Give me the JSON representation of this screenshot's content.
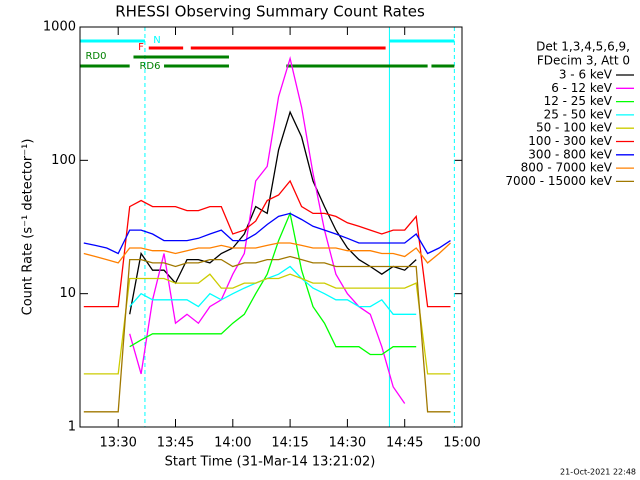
{
  "chart_data": {
    "type": "line",
    "title": "RHESSI Observing Summary Count Rates",
    "xlabel": "Start Time (31-Mar-14 13:21:02)",
    "ylabel": "Count Rate (s⁻¹ detector⁻¹)",
    "footer": "21-Oct-2021 22:48",
    "legend_header": [
      "Det 1,3,4,5,6,9,",
      "FDecim 3, Att 0"
    ],
    "log_y": true,
    "xlim": [
      800,
      900
    ],
    "ylim": [
      1,
      1000
    ],
    "yticks": [
      1,
      10,
      100,
      1000
    ],
    "xticks": [
      {
        "value": 810,
        "label": "13:30"
      },
      {
        "value": 825,
        "label": "13:45"
      },
      {
        "value": 840,
        "label": "14:00"
      },
      {
        "value": 855,
        "label": "14:15"
      },
      {
        "value": 870,
        "label": "14:30"
      },
      {
        "value": 885,
        "label": "14:45"
      },
      {
        "value": 900,
        "label": "15:00"
      }
    ],
    "x": [
      801,
      804,
      807,
      810,
      813,
      816,
      819,
      822,
      825,
      828,
      831,
      834,
      837,
      840,
      843,
      846,
      849,
      852,
      855,
      858,
      861,
      864,
      867,
      870,
      873,
      876,
      879,
      882,
      885,
      888,
      891,
      894,
      897
    ],
    "series": [
      {
        "name": "3 - 6 keV",
        "color": "#000000",
        "values": [
          null,
          null,
          null,
          null,
          7,
          20,
          15,
          15,
          12,
          18,
          18,
          17,
          20,
          22,
          28,
          45,
          40,
          120,
          230,
          150,
          70,
          45,
          30,
          22,
          18,
          16,
          14,
          16,
          15,
          18,
          null,
          null,
          null
        ]
      },
      {
        "name": "6 - 12 keV",
        "color": "#ff00ff",
        "values": [
          null,
          null,
          null,
          null,
          5,
          2.5,
          9,
          20,
          6,
          7,
          6,
          8,
          9,
          14,
          20,
          70,
          90,
          300,
          580,
          250,
          80,
          30,
          14,
          10,
          8,
          7,
          4,
          2,
          1.5,
          null,
          null,
          null,
          null
        ]
      },
      {
        "name": "12 - 25 keV",
        "color": "#00ff00",
        "values": [
          null,
          null,
          null,
          null,
          4,
          4.5,
          5,
          5,
          5,
          5,
          5,
          5,
          5,
          6,
          7,
          10,
          14,
          25,
          40,
          15,
          8,
          6,
          4,
          4,
          4,
          3.5,
          3.5,
          4,
          4,
          4,
          null,
          null,
          null
        ]
      },
      {
        "name": "25 - 50 keV",
        "color": "#00ffff",
        "values": [
          null,
          null,
          null,
          null,
          8,
          10,
          9,
          9,
          9,
          9,
          8,
          10,
          9,
          10,
          11,
          12,
          13,
          14,
          16,
          13,
          11,
          10,
          9,
          9,
          8,
          8,
          9,
          7,
          7,
          7,
          null,
          null,
          null
        ]
      },
      {
        "name": "50 - 100 keV",
        "color": "#cccc00",
        "values": [
          2.5,
          2.5,
          2.5,
          2.5,
          13,
          13,
          13,
          13,
          12,
          12,
          12,
          14,
          11,
          11,
          12,
          12,
          13,
          13,
          14,
          13,
          12,
          12,
          11,
          11,
          11,
          11,
          11,
          11,
          11,
          12,
          2.5,
          2.5,
          2.5
        ]
      },
      {
        "name": "100 - 300 keV",
        "color": "#ff0000",
        "values": [
          8,
          8,
          8,
          8,
          45,
          50,
          45,
          45,
          45,
          42,
          42,
          45,
          45,
          28,
          30,
          35,
          50,
          55,
          70,
          45,
          40,
          40,
          38,
          34,
          32,
          30,
          28,
          30,
          30,
          38,
          8,
          8,
          8
        ]
      },
      {
        "name": "300 - 800 keV",
        "color": "#0000ff",
        "values": [
          24,
          23,
          22,
          20,
          30,
          30,
          28,
          25,
          25,
          25,
          26,
          28,
          30,
          25,
          25,
          28,
          33,
          38,
          40,
          36,
          32,
          30,
          28,
          26,
          24,
          24,
          24,
          24,
          24,
          28,
          20,
          22,
          25
        ]
      },
      {
        "name": "800 - 7000 keV",
        "color": "#ff8000",
        "values": [
          20,
          19,
          18,
          17,
          22,
          22,
          21,
          21,
          20,
          21,
          22,
          22,
          23,
          22,
          22,
          22,
          23,
          24,
          24,
          23,
          22,
          22,
          22,
          21,
          21,
          21,
          20,
          20,
          19,
          22,
          17,
          20,
          24
        ]
      },
      {
        "name": "7000 - 15000 keV",
        "color": "#a07800",
        "values": [
          1.3,
          1.3,
          1.3,
          1.3,
          18,
          18,
          17,
          17,
          16,
          17,
          17,
          18,
          18,
          16,
          17,
          17,
          18,
          18,
          19,
          18,
          17,
          17,
          16,
          16,
          16,
          16,
          16,
          16,
          16,
          16,
          1.3,
          1.3,
          1.3
        ]
      }
    ],
    "flags": [
      {
        "label": "N",
        "color": "#00ffff",
        "intervals": [
          [
            800,
            817
          ],
          [
            881,
            898
          ]
        ]
      },
      {
        "label": "F",
        "color": "#ff0000",
        "intervals": [
          [
            818,
            827
          ],
          [
            829,
            880
          ]
        ]
      },
      {
        "label": "RD0",
        "color": "#008000",
        "intervals": [
          [
            814,
            839
          ]
        ]
      },
      {
        "label": "RD6",
        "color": "#008000",
        "intervals": [
          [
            800,
            813
          ],
          [
            822,
            839
          ],
          [
            854,
            891
          ],
          [
            892,
            898
          ]
        ]
      }
    ]
  }
}
